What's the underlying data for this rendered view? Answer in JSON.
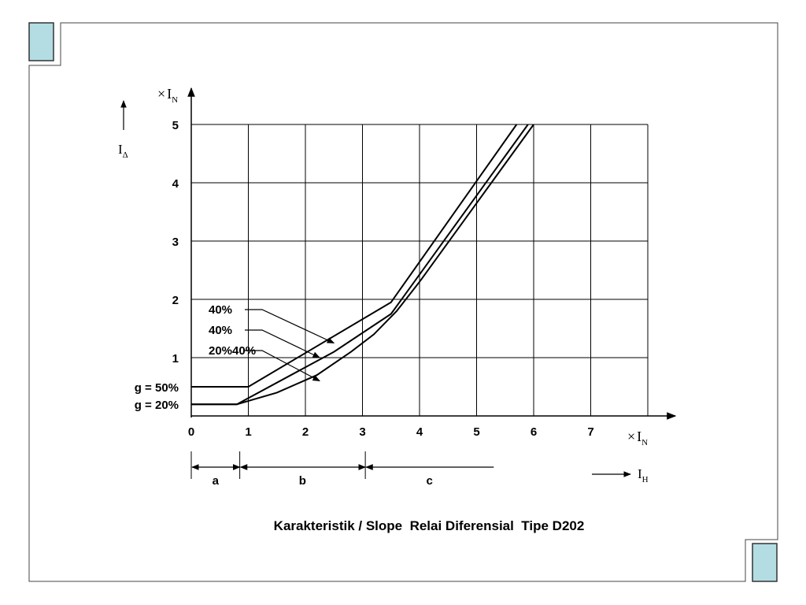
{
  "chart_data": {
    "type": "line",
    "title": "Karakteristik / Slope  Relai Diferensial  Tipe D202",
    "ylabel": {
      "symbol": "I",
      "sub": "Δ",
      "unit_prefix": "×",
      "unit_symbol": "I",
      "unit_sub": "N"
    },
    "xlabel": {
      "unit_prefix": "×",
      "unit_symbol": "I",
      "unit_sub": "N"
    },
    "axis_label_H": {
      "symbol": "I",
      "sub": "H"
    },
    "xlim": [
      0,
      8
    ],
    "ylim": [
      0,
      5
    ],
    "x_ticks": [
      "0",
      "1",
      "2",
      "3",
      "4",
      "5",
      "6",
      "7"
    ],
    "y_ticks": [
      "1",
      "2",
      "3",
      "4",
      "5"
    ],
    "grid": true,
    "series": [
      {
        "x": [
          0,
          1,
          3.5,
          5.7
        ],
        "y": [
          0.5,
          0.5,
          1.95,
          5
        ]
      },
      {
        "x": [
          0,
          0.8,
          2.5,
          3.5,
          5.9
        ],
        "y": [
          0.2,
          0.2,
          1.1,
          1.75,
          5
        ]
      },
      {
        "x": [
          0,
          0.8,
          1.5,
          2.2,
          2.8,
          3.2,
          3.6,
          4,
          6
        ],
        "y": [
          0.2,
          0.2,
          0.4,
          0.7,
          1.1,
          1.4,
          1.8,
          2.3,
          5
        ]
      }
    ],
    "curve_labels": [
      {
        "text": "40%",
        "target": [
          2.5,
          1.25
        ]
      },
      {
        "text": "40%",
        "target": [
          2.25,
          1.0
        ]
      },
      {
        "text": "20%40%",
        "target": [
          2.25,
          0.6
        ]
      }
    ],
    "g_labels": [
      {
        "text": "g = 50%",
        "y": 0.5
      },
      {
        "text": "g = 20%",
        "y": 0.2
      }
    ],
    "regions": [
      {
        "label": "a",
        "from": 0,
        "to": 0.85
      },
      {
        "label": "b",
        "from": 0.85,
        "to": 3.05
      },
      {
        "label": "c",
        "from": 3.05,
        "to": 5.3
      }
    ]
  },
  "colors": {
    "corner_box_fill": "#b3dde3",
    "line": "#000000"
  }
}
